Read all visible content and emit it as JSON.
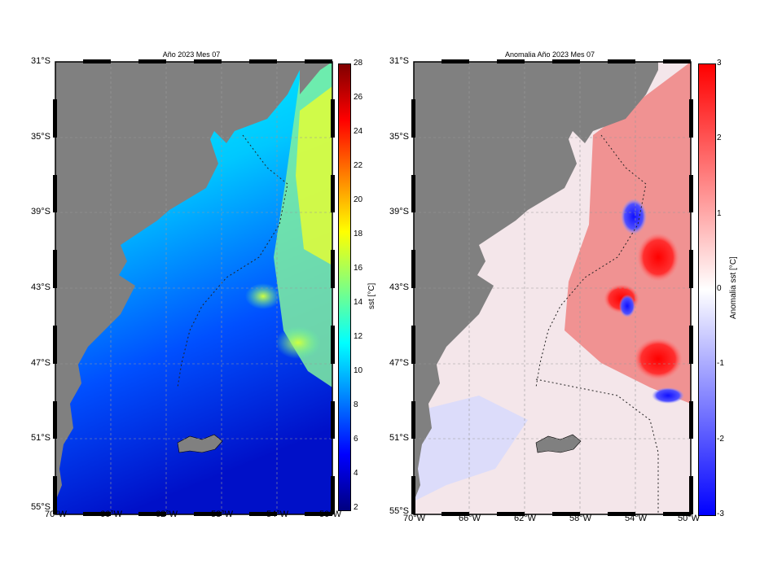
{
  "maps": [
    {
      "title": "Año 2023 Mes 07",
      "lat_labels": [
        "31°S",
        "35°S",
        "39°S",
        "43°S",
        "47°S",
        "51°S",
        "55°S"
      ],
      "lon_labels": [
        "70°W",
        "66°W",
        "62°W",
        "58°W",
        "54°W",
        "50°W"
      ],
      "colorbar": {
        "label": "sst [°C]",
        "ticks": [
          "28",
          "26",
          "24",
          "22",
          "20",
          "18",
          "16",
          "14",
          "12",
          "10",
          "8",
          "6",
          "4",
          "2"
        ],
        "range": [
          2,
          28
        ],
        "colors": [
          "#000080",
          "#0000ff",
          "#0080ff",
          "#00ffff",
          "#80ff80",
          "#ffff00",
          "#ff8000",
          "#ff0000",
          "#800000"
        ]
      }
    },
    {
      "title": "Anomalia Año 2023 Mes 07",
      "lat_labels": [
        "31°S",
        "35°S",
        "39°S",
        "43°S",
        "47°S",
        "51°S",
        "55°S"
      ],
      "lon_labels": [
        "70°W",
        "66°W",
        "62°W",
        "58°W",
        "54°W",
        "50°W"
      ],
      "colorbar": {
        "label": "Anomalia sst [°C]",
        "ticks": [
          "3",
          "2",
          "1",
          "0",
          "-1",
          "-2",
          "-3"
        ],
        "range": [
          -3,
          3
        ],
        "colors": [
          "#0000ff",
          "#ffffff",
          "#ff0000"
        ]
      }
    }
  ],
  "colors": {
    "land": "#808080",
    "frame": "#000000"
  }
}
